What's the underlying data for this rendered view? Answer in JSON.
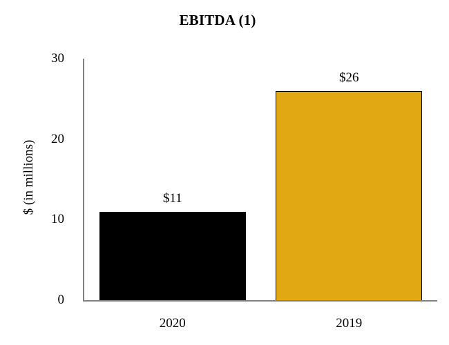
{
  "chart_data": {
    "type": "bar",
    "title": "EBITDA (1)",
    "categories": [
      "2020",
      "2019"
    ],
    "values": [
      11,
      26
    ],
    "data_labels": [
      "$11",
      "$26"
    ],
    "bar_colors": [
      "#000000",
      "#E2A813"
    ],
    "bar_border_color": "#000000",
    "xlabel": "",
    "ylabel": "$ (in millions)",
    "ylim": [
      0,
      30
    ],
    "yticks": [
      "0",
      "10",
      "20",
      "30"
    ],
    "grid": false,
    "legend": "none",
    "axis_color": "#808080",
    "text_color": "#000000",
    "background_color": "#FFFFFF"
  }
}
